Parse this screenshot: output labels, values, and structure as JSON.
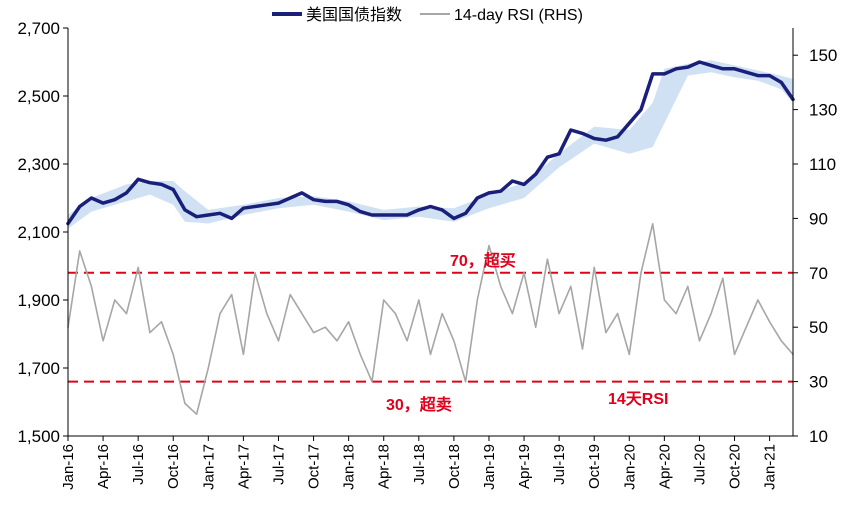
{
  "chart_data": {
    "type": "line",
    "legend": {
      "placement": "top-center",
      "entries": [
        "美国国债指数",
        "14-day RSI (RHS)"
      ]
    },
    "colors": {
      "index": "#1a1f7a",
      "rsi": "#a6a6a6",
      "band": "#c9dcf2",
      "threshold": "#e0001b"
    },
    "x_labels": [
      "Jan-16",
      "Apr-16",
      "Jul-16",
      "Oct-16",
      "Jan-17",
      "Apr-17",
      "Jul-17",
      "Oct-17",
      "Jan-18",
      "Apr-18",
      "Jul-18",
      "Oct-18",
      "Jan-19",
      "Apr-19",
      "Jul-19",
      "Oct-19",
      "Jan-20",
      "Apr-20",
      "Jul-20",
      "Oct-20",
      "Jan-21"
    ],
    "y_left": {
      "ticks": [
        "1,500",
        "1,700",
        "1,900",
        "2,100",
        "2,300",
        "2,500",
        "2,700"
      ],
      "range": [
        1500,
        2700
      ]
    },
    "y_right": {
      "ticks": [
        "10",
        "30",
        "50",
        "70",
        "90",
        "110",
        "130",
        "150"
      ],
      "range": [
        10,
        160
      ]
    },
    "thresholds": [
      {
        "value": 70,
        "label": "70，超买"
      },
      {
        "value": 30,
        "label": "30，超卖"
      }
    ],
    "annotations": {
      "rsi_label": "14天RSI"
    },
    "series": [
      {
        "name": "美国国债指数",
        "axis": "left",
        "x": [
          "Jan-16",
          "Feb-16",
          "Mar-16",
          "Apr-16",
          "May-16",
          "Jun-16",
          "Jul-16",
          "Aug-16",
          "Sep-16",
          "Oct-16",
          "Nov-16",
          "Dec-16",
          "Jan-17",
          "Feb-17",
          "Mar-17",
          "Apr-17",
          "May-17",
          "Jun-17",
          "Jul-17",
          "Aug-17",
          "Sep-17",
          "Oct-17",
          "Nov-17",
          "Dec-17",
          "Jan-18",
          "Feb-18",
          "Mar-18",
          "Apr-18",
          "May-18",
          "Jun-18",
          "Jul-18",
          "Aug-18",
          "Sep-18",
          "Oct-18",
          "Nov-18",
          "Dec-18",
          "Jan-19",
          "Feb-19",
          "Mar-19",
          "Apr-19",
          "May-19",
          "Jun-19",
          "Jul-19",
          "Aug-19",
          "Sep-19",
          "Oct-19",
          "Nov-19",
          "Dec-19",
          "Jan-20",
          "Feb-20",
          "Mar-20",
          "Apr-20",
          "May-20",
          "Jun-20",
          "Jul-20",
          "Aug-20",
          "Sep-20",
          "Oct-20",
          "Nov-20",
          "Dec-20",
          "Jan-21",
          "Feb-21",
          "Mar-21"
        ],
        "values": [
          2125,
          2175,
          2200,
          2185,
          2195,
          2215,
          2255,
          2245,
          2240,
          2225,
          2165,
          2145,
          2150,
          2155,
          2140,
          2170,
          2175,
          2180,
          2185,
          2200,
          2215,
          2195,
          2190,
          2190,
          2180,
          2160,
          2150,
          2150,
          2150,
          2150,
          2165,
          2175,
          2165,
          2140,
          2155,
          2200,
          2215,
          2220,
          2250,
          2240,
          2270,
          2320,
          2330,
          2400,
          2390,
          2375,
          2370,
          2380,
          2420,
          2460,
          2565,
          2565,
          2580,
          2585,
          2600,
          2590,
          2580,
          2580,
          2570,
          2560,
          2560,
          2540,
          2490
        ]
      },
      {
        "name": "14-day RSI (RHS)",
        "axis": "right",
        "x": [
          "Jan-16",
          "Feb-16",
          "Mar-16",
          "Apr-16",
          "May-16",
          "Jun-16",
          "Jul-16",
          "Aug-16",
          "Sep-16",
          "Oct-16",
          "Nov-16",
          "Dec-16",
          "Jan-17",
          "Feb-17",
          "Mar-17",
          "Apr-17",
          "May-17",
          "Jun-17",
          "Jul-17",
          "Aug-17",
          "Sep-17",
          "Oct-17",
          "Nov-17",
          "Dec-17",
          "Jan-18",
          "Feb-18",
          "Mar-18",
          "Apr-18",
          "May-18",
          "Jun-18",
          "Jul-18",
          "Aug-18",
          "Sep-18",
          "Oct-18",
          "Nov-18",
          "Dec-18",
          "Jan-19",
          "Feb-19",
          "Mar-19",
          "Apr-19",
          "May-19",
          "Jun-19",
          "Jul-19",
          "Aug-19",
          "Sep-19",
          "Oct-19",
          "Nov-19",
          "Dec-19",
          "Jan-20",
          "Feb-20",
          "Mar-20",
          "Apr-20",
          "May-20",
          "Jun-20",
          "Jul-20",
          "Aug-20",
          "Sep-20",
          "Oct-20",
          "Nov-20",
          "Dec-20",
          "Jan-21",
          "Feb-21",
          "Mar-21"
        ],
        "values": [
          50,
          78,
          65,
          45,
          60,
          55,
          72,
          48,
          52,
          40,
          22,
          18,
          35,
          55,
          62,
          40,
          70,
          55,
          45,
          62,
          55,
          48,
          50,
          45,
          52,
          40,
          30,
          60,
          55,
          45,
          60,
          40,
          55,
          45,
          30,
          60,
          80,
          65,
          55,
          70,
          50,
          75,
          55,
          65,
          42,
          72,
          48,
          55,
          40,
          70,
          88,
          60,
          55,
          65,
          45,
          55,
          68,
          40,
          50,
          60,
          52,
          45,
          40
        ]
      }
    ],
    "band": {
      "axis": "left",
      "x": [
        "Jan-16",
        "Mar-16",
        "Jun-16",
        "Aug-16",
        "Oct-16",
        "Nov-16",
        "Jan-17",
        "Apr-17",
        "Jul-17",
        "Oct-17",
        "Jan-18",
        "Apr-18",
        "Jul-18",
        "Oct-18",
        "Jan-19",
        "Apr-19",
        "Jul-19",
        "Oct-19",
        "Jan-20",
        "Mar-20",
        "Apr-20",
        "Jun-20",
        "Aug-20",
        "Oct-20",
        "Dec-20",
        "Feb-21",
        "Mar-21"
      ],
      "upper": [
        2150,
        2200,
        2240,
        2250,
        2250,
        2220,
        2165,
        2180,
        2200,
        2205,
        2190,
        2165,
        2175,
        2170,
        2210,
        2245,
        2330,
        2410,
        2400,
        2480,
        2580,
        2595,
        2605,
        2590,
        2575,
        2560,
        2550
      ],
      "lower": [
        2110,
        2160,
        2190,
        2210,
        2180,
        2130,
        2125,
        2150,
        2170,
        2180,
        2160,
        2135,
        2145,
        2130,
        2170,
        2200,
        2290,
        2360,
        2330,
        2350,
        2420,
        2560,
        2570,
        2555,
        2545,
        2520,
        2480
      ]
    }
  }
}
